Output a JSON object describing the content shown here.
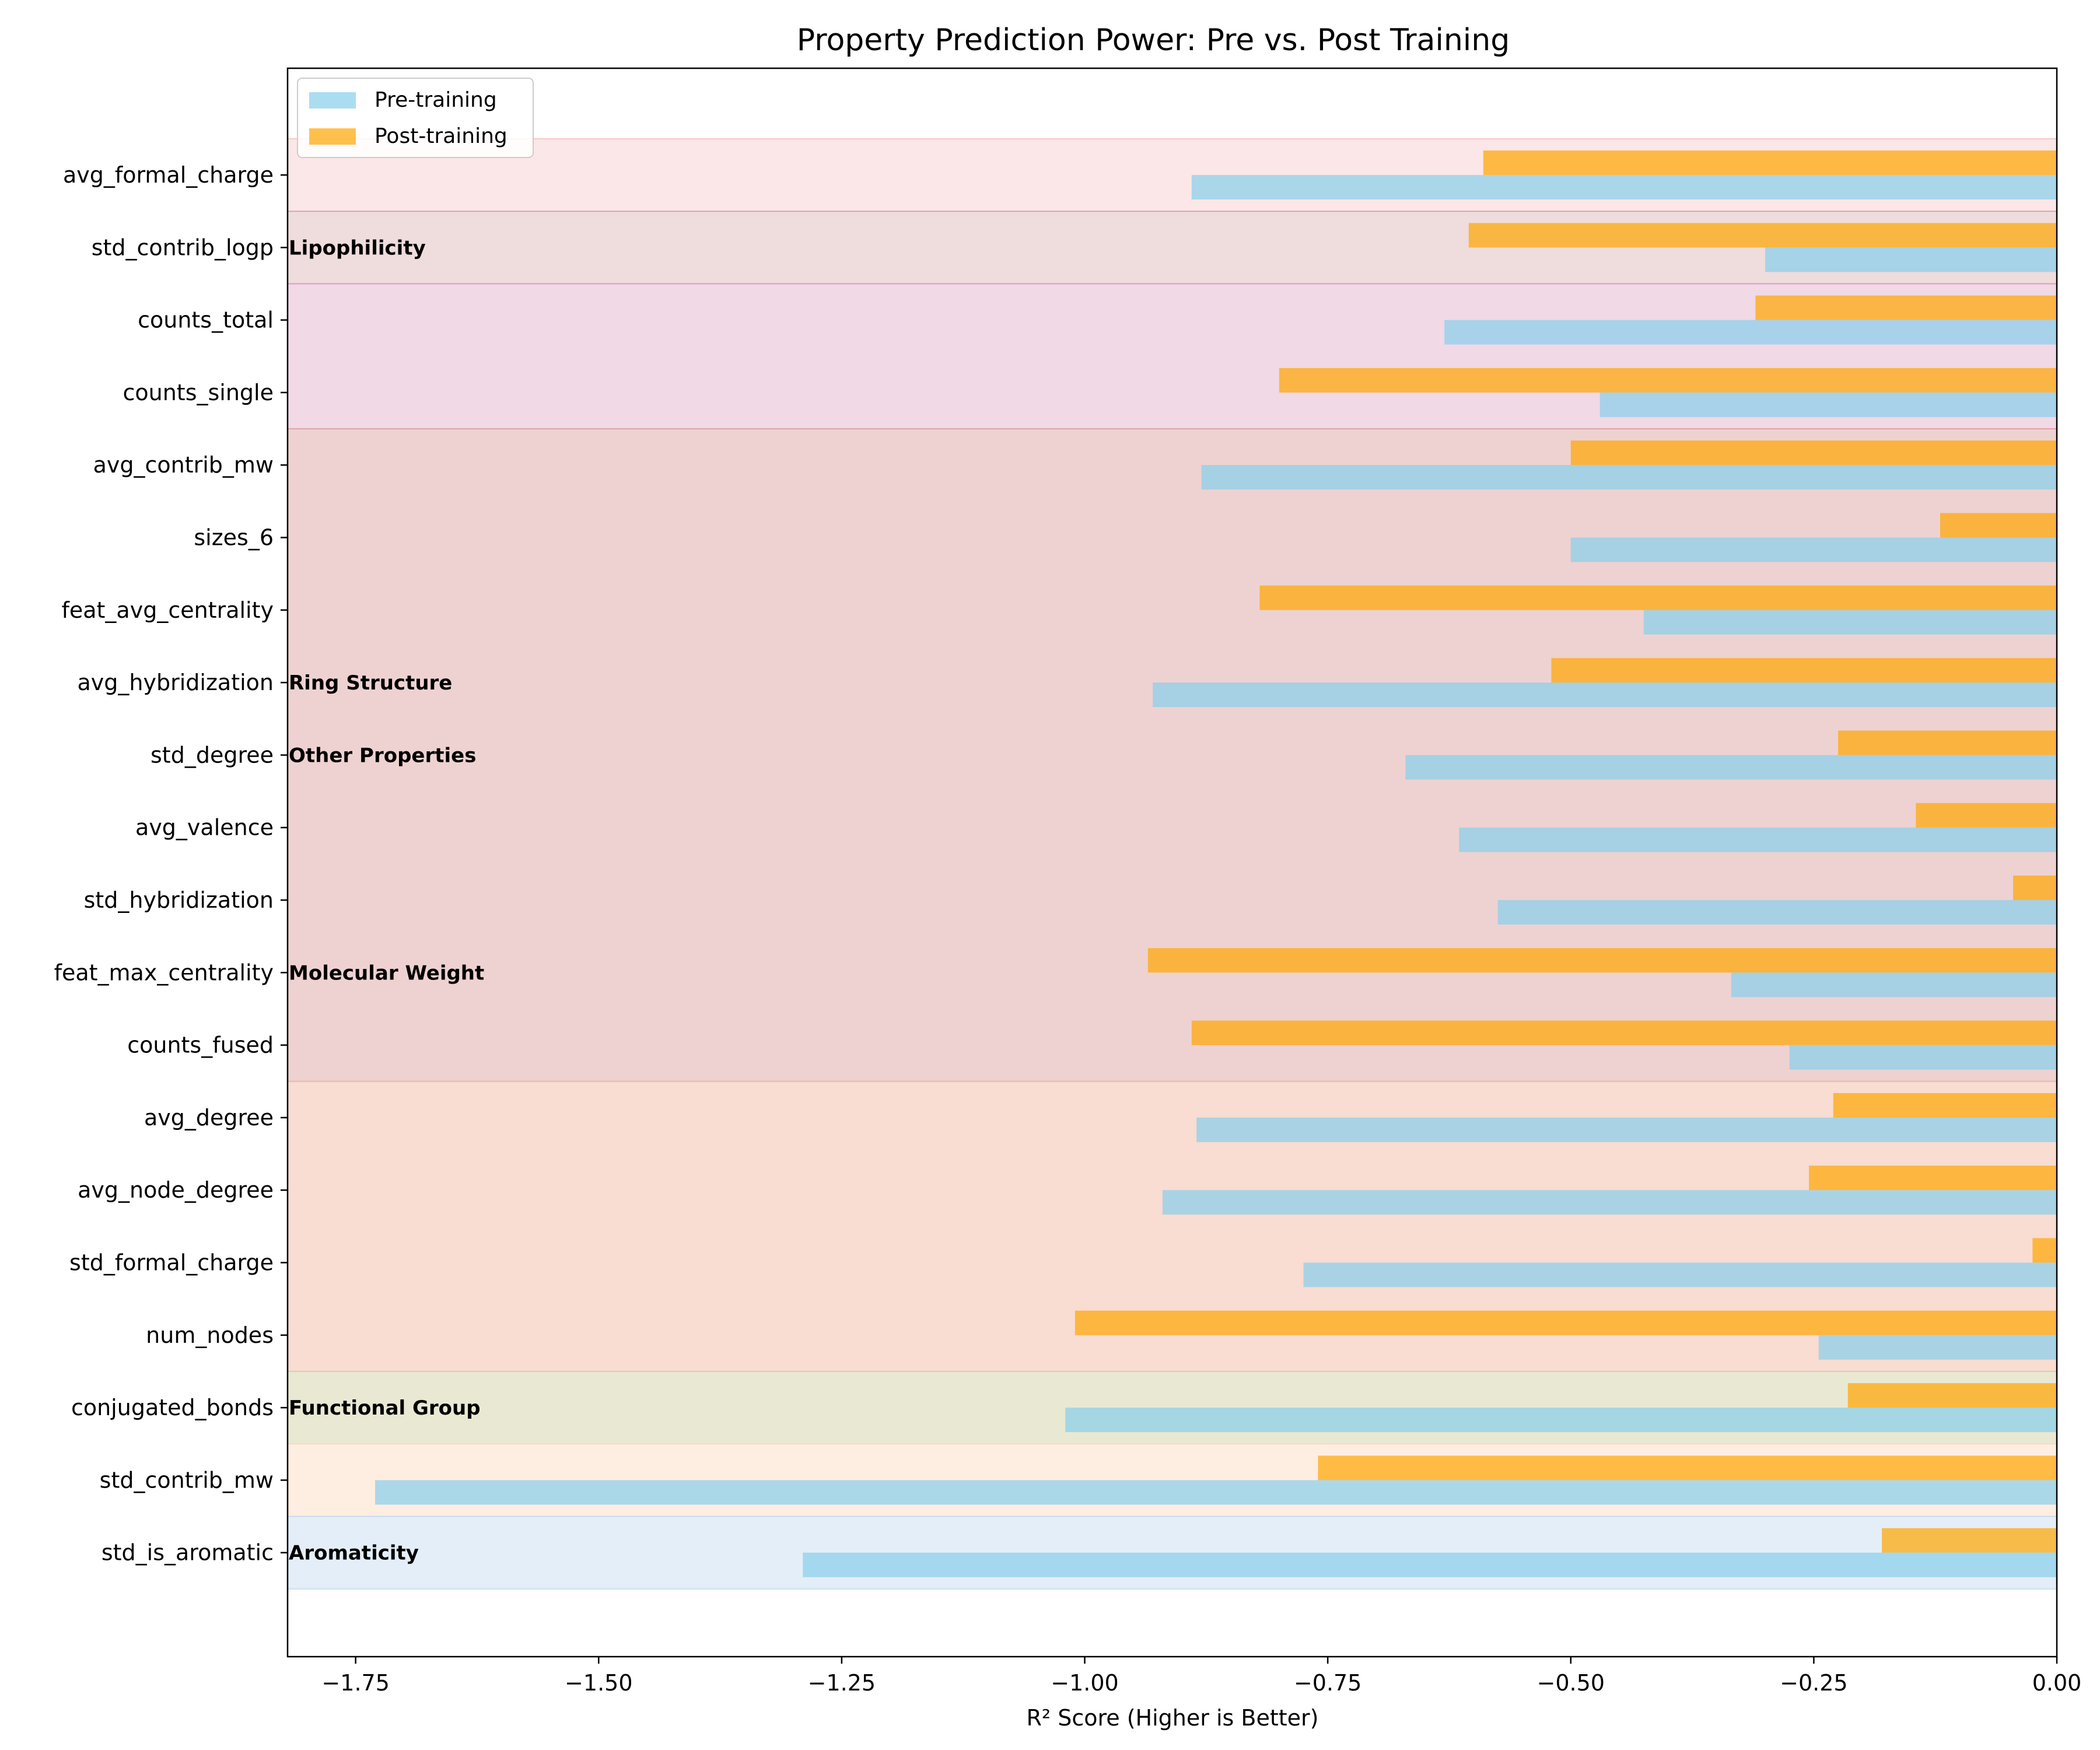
{
  "chart_data": {
    "type": "bar",
    "orientation": "horizontal",
    "title": "Property Prediction Power: Pre vs. Post Training",
    "xlabel": "R² Score (Higher is Better)",
    "ylabel": "",
    "xlim": [
      -1.82,
      0.0
    ],
    "xticks": [
      -1.75,
      -1.5,
      -1.25,
      -1.0,
      -0.75,
      -0.5,
      -0.25,
      0.0
    ],
    "xtick_labels": [
      "−1.75",
      "−1.50",
      "−1.25",
      "−1.00",
      "−0.75",
      "−0.50",
      "−0.25",
      "0.00"
    ],
    "grid": false,
    "legend_position": "top-left",
    "categories": [
      "avg_formal_charge",
      "std_contrib_logp",
      "counts_total",
      "counts_single",
      "avg_contrib_mw",
      "sizes_6",
      "feat_avg_centrality",
      "avg_hybridization",
      "std_degree",
      "avg_valence",
      "std_hybridization",
      "feat_max_centrality",
      "counts_fused",
      "avg_degree",
      "avg_node_degree",
      "std_formal_charge",
      "num_nodes",
      "conjugated_bonds",
      "std_contrib_mw",
      "std_is_aromatic"
    ],
    "series": [
      {
        "name": "Pre-training",
        "color": "#87CEEB",
        "values": [
          -0.89,
          -0.3,
          -0.63,
          -0.47,
          -0.88,
          -0.5,
          -0.425,
          -0.93,
          -0.67,
          -0.615,
          -0.575,
          -0.335,
          -0.275,
          -0.885,
          -0.92,
          -0.775,
          -0.245,
          -1.02,
          -1.73,
          -1.29
        ]
      },
      {
        "name": "Post-training",
        "color": "#FFA500",
        "values": [
          -0.59,
          -0.605,
          -0.31,
          -0.8,
          -0.5,
          -0.12,
          -0.82,
          -0.52,
          -0.225,
          -0.145,
          -0.045,
          -0.935,
          -0.89,
          -0.23,
          -0.255,
          -0.025,
          -1.01,
          -0.215,
          -0.76,
          -0.18
        ]
      }
    ],
    "groups": [
      {
        "label": "",
        "color": "#F4C2C2",
        "alpha": 0.4,
        "from": 0,
        "to": 0
      },
      {
        "label": "Lipophilicity",
        "color": "#D8A7A7",
        "alpha": 0.4,
        "from": 1,
        "to": 1
      },
      {
        "label": "",
        "color": "#DDA0C0",
        "alpha": 0.4,
        "from": 2,
        "to": 3
      },
      {
        "label": "",
        "color": "#DEA5A4",
        "alpha": 0.5,
        "from": 4,
        "to": 12
      },
      {
        "label": "",
        "color": "#F4B9A6",
        "alpha": 0.5,
        "from": 13,
        "to": 16
      },
      {
        "label": "",
        "color": "#D4D1A8",
        "alpha": 0.5,
        "from": 17,
        "to": 17
      },
      {
        "label": "",
        "color": "#FDDEC4",
        "alpha": 0.5,
        "from": 18,
        "to": 18
      },
      {
        "label": "",
        "color": "#C4DAF0",
        "alpha": 0.45,
        "from": 19,
        "to": 19
      }
    ],
    "annotations": [
      {
        "text": "Lipophilicity",
        "at": 1
      },
      {
        "text": "Ring Structure",
        "at": 7
      },
      {
        "text": "Other Properties",
        "at": 8
      },
      {
        "text": "Molecular Weight",
        "at": 11
      },
      {
        "text": "Functional Group",
        "at": 17
      },
      {
        "text": "Aromaticity",
        "at": 19
      }
    ]
  }
}
